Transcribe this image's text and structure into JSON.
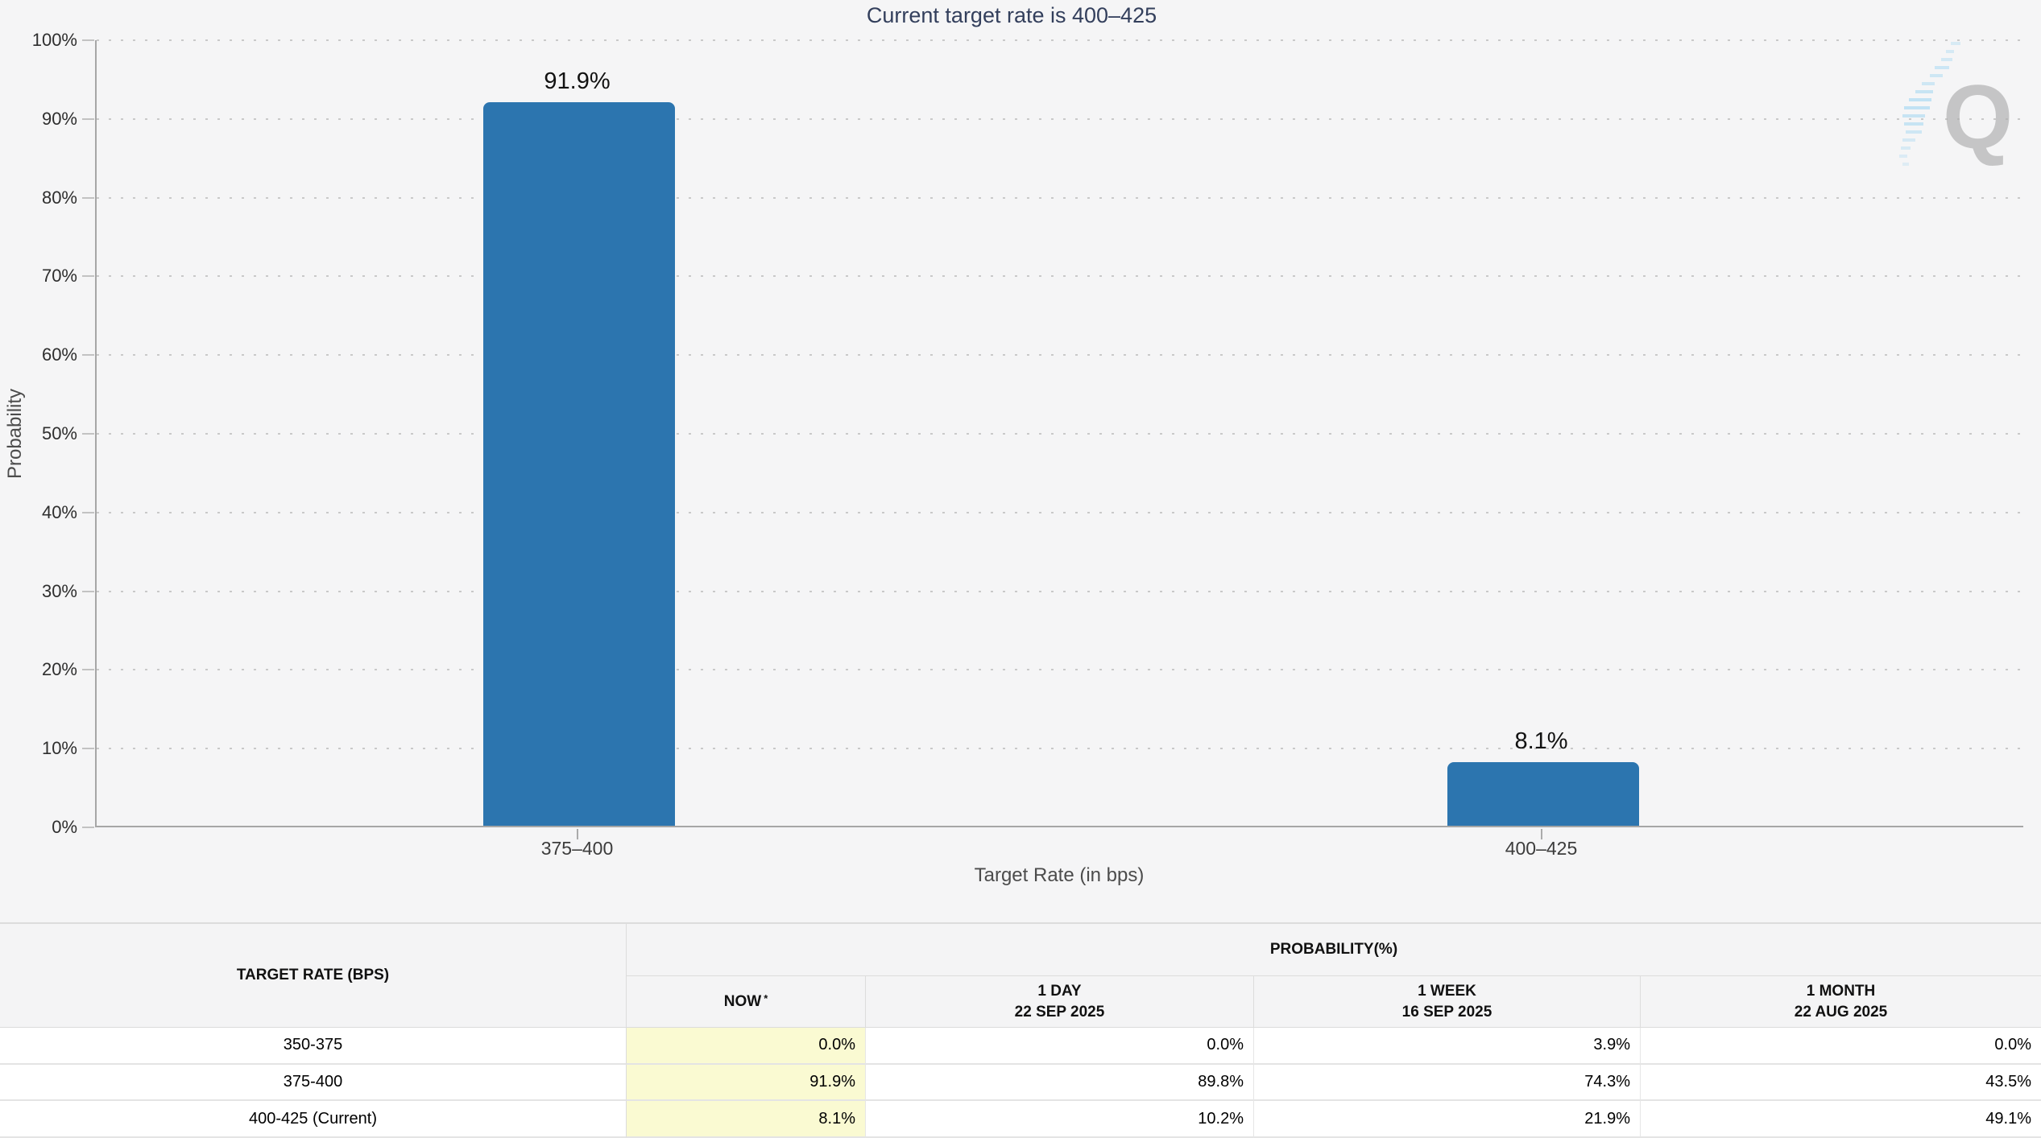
{
  "page": {
    "background": "#f5f5f6"
  },
  "chart": {
    "title": "Current target rate is 400–425",
    "ylabel": "Probability",
    "xlabel": "Target Rate (in bps)"
  },
  "chart_data": {
    "type": "bar",
    "title": "Current target rate is 400–425",
    "categories": [
      "375–400",
      "400–425"
    ],
    "values": [
      91.9,
      8.1
    ],
    "value_labels": [
      "91.9%",
      "8.1%"
    ],
    "xlabel": "Target Rate (in bps)",
    "ylabel": "Probability",
    "ylim": [
      0,
      100
    ],
    "y_tick_step": 10,
    "grid": "dotted-horizontal",
    "legend": "none",
    "bar_color": "#2c75af"
  },
  "watermark": {
    "letter": "Q",
    "q_color": "#b0b0b0",
    "bars_color": "#a9d9f2"
  },
  "table": {
    "rate_header": "TARGET RATE (BPS)",
    "group_header": "PROBABILITY(%)",
    "highlight_color": "#fafad2",
    "columns": [
      {
        "label": "NOW",
        "asterisk": "*",
        "sublabel": ""
      },
      {
        "label": "1 DAY",
        "asterisk": "",
        "sublabel": "22 SEP 2025"
      },
      {
        "label": "1 WEEK",
        "asterisk": "",
        "sublabel": "16 SEP 2025"
      },
      {
        "label": "1 MONTH",
        "asterisk": "",
        "sublabel": "22 AUG 2025"
      }
    ],
    "rows": [
      {
        "rate": "350-375",
        "now": "0.0%",
        "day": "0.0%",
        "week": "3.9%",
        "month": "0.0%"
      },
      {
        "rate": "375-400",
        "now": "91.9%",
        "day": "89.8%",
        "week": "74.3%",
        "month": "43.5%"
      },
      {
        "rate": "400-425 (Current)",
        "now": "8.1%",
        "day": "10.2%",
        "week": "21.9%",
        "month": "49.1%"
      }
    ]
  }
}
